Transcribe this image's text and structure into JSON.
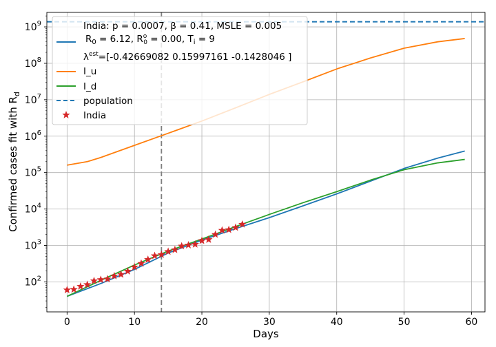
{
  "chart_data": {
    "type": "line",
    "xlabel": "Days",
    "ylabel": "Confirmed cases fit with R",
    "ylabel_sub": "d",
    "xlim": [
      -3,
      62
    ],
    "ylim": [
      15,
      2500000000
    ],
    "yscale": "log",
    "grid": true,
    "x_ticks": [
      0,
      10,
      20,
      30,
      40,
      50,
      60
    ],
    "y_ticks": [
      {
        "value": 100,
        "base": "10",
        "exp": "2"
      },
      {
        "value": 1000,
        "base": "10",
        "exp": "3"
      },
      {
        "value": 10000,
        "base": "10",
        "exp": "4"
      },
      {
        "value": 100000,
        "base": "10",
        "exp": "5"
      },
      {
        "value": 1000000,
        "base": "10",
        "exp": "6"
      },
      {
        "value": 10000000,
        "base": "10",
        "exp": "7"
      },
      {
        "value": 100000000,
        "base": "10",
        "exp": "8"
      },
      {
        "value": 1000000000,
        "base": "10",
        "exp": "9"
      }
    ],
    "vline": {
      "x": 14,
      "color": "#7f7f7f"
    },
    "population": {
      "name": "population",
      "value": 1380000000,
      "color": "#1f77b4"
    },
    "series": [
      {
        "key": "fit",
        "name": "",
        "color": "#1f77b4",
        "x": [
          0,
          5,
          10,
          15,
          20,
          25,
          30,
          35,
          40,
          45,
          50,
          55,
          59
        ],
        "y": [
          40,
          90,
          220,
          620,
          1400,
          2900,
          5800,
          12200,
          26000,
          58000,
          130000,
          250000,
          390000
        ]
      },
      {
        "key": "iu",
        "name": "I_u",
        "color": "#ff7f0e",
        "x": [
          0,
          3,
          5,
          10,
          15,
          20,
          25,
          30,
          35,
          40,
          45,
          50,
          55,
          59
        ],
        "y": [
          160000,
          200000,
          260000,
          560000,
          1200000,
          2600000,
          6000000,
          14000000,
          31000000,
          70000000,
          140000000,
          260000000,
          390000000,
          480000000
        ]
      },
      {
        "key": "id",
        "name": "I_d",
        "color": "#2ca02c",
        "x": [
          0,
          5,
          10,
          15,
          20,
          25,
          30,
          35,
          40,
          45,
          50,
          55,
          59
        ],
        "y": [
          40,
          110,
          290,
          700,
          1500,
          3300,
          7100,
          14900,
          30000,
          62000,
          120000,
          185000,
          230000
        ]
      }
    ],
    "observed": {
      "name": "India",
      "color": "#d62728",
      "x": [
        0,
        1,
        2,
        3,
        4,
        5,
        6,
        7,
        8,
        9,
        10,
        11,
        12,
        13,
        14,
        15,
        16,
        17,
        18,
        19,
        20,
        21,
        22,
        23,
        24,
        25,
        26
      ],
      "y": [
        60,
        62,
        75,
        84,
        107,
        115,
        120,
        145,
        160,
        195,
        255,
        320,
        410,
        520,
        560,
        680,
        760,
        960,
        1020,
        1070,
        1350,
        1450,
        2000,
        2600,
        2700,
        3100,
        3800
      ]
    }
  },
  "legend": {
    "title_line": "India: p = 0.0007,  β =  0.41, MSLE = 0.005",
    "fit_label": {
      "r0": "R",
      "r0_sub": "0",
      "r0_val": " = 6.12, ",
      "r00": "R",
      "r00_sub": "0",
      "r00_sup": "o",
      "r00_val": " = 0.00, ",
      "ti": "T",
      "ti_sub": "i",
      "ti_val": " = 9"
    },
    "lambda_label": {
      "sym": "λ",
      "sup": "est",
      "val": "=[-0.42669082  0.15997161 -0.1428046 ]"
    },
    "iu_label": "I_u",
    "id_label": "I_d",
    "population_label": "population",
    "observed_label": "India"
  }
}
